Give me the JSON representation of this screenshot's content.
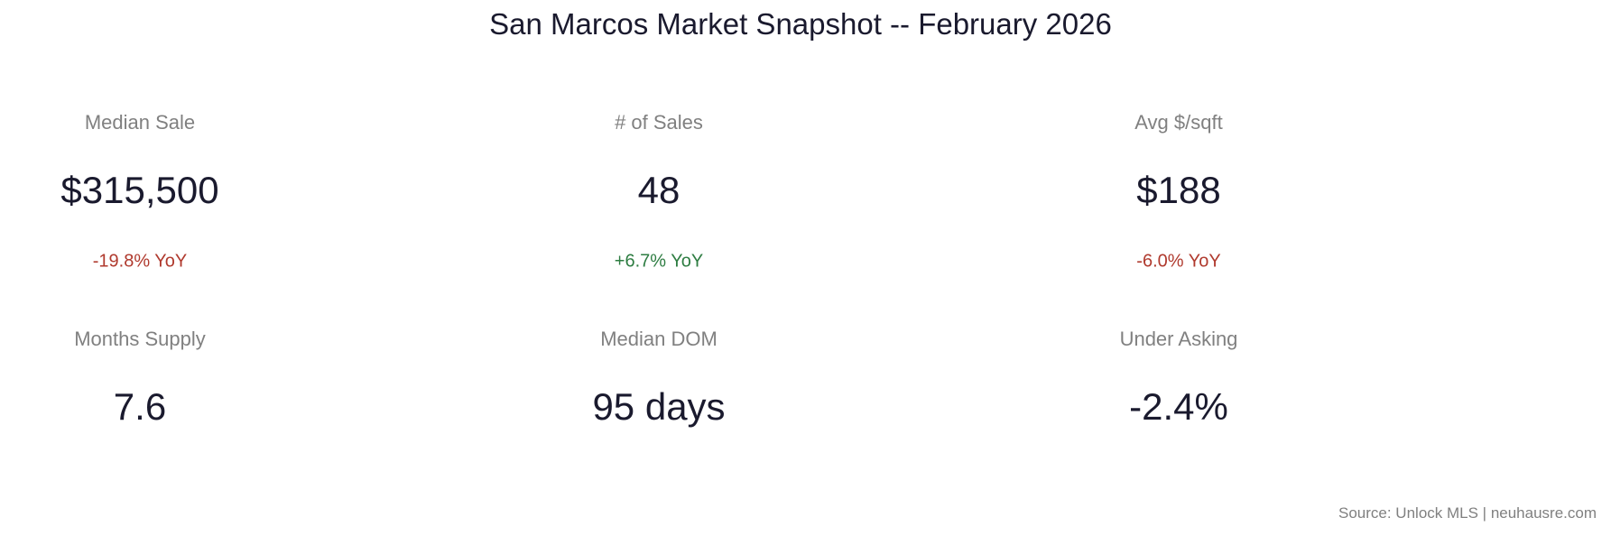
{
  "title": "San Marcos Market Snapshot -- February 2026",
  "metrics": [
    {
      "label": "Median Sale",
      "value": "$315,500",
      "yoy": "-19.8% YoY",
      "yoy_color": "#b03a2e"
    },
    {
      "label": "# of Sales",
      "value": "48",
      "yoy": "+6.7% YoY",
      "yoy_color": "#2e7d42"
    },
    {
      "label": "Avg $/sqft",
      "value": "$188",
      "yoy": "-6.0% YoY",
      "yoy_color": "#b03a2e"
    },
    {
      "label": "Months Supply",
      "value": "7.6"
    },
    {
      "label": "Median DOM",
      "value": "95 days"
    },
    {
      "label": "Under Asking",
      "value": "-2.4%"
    }
  ],
  "source": "Source: Unlock MLS | neuhausre.com"
}
